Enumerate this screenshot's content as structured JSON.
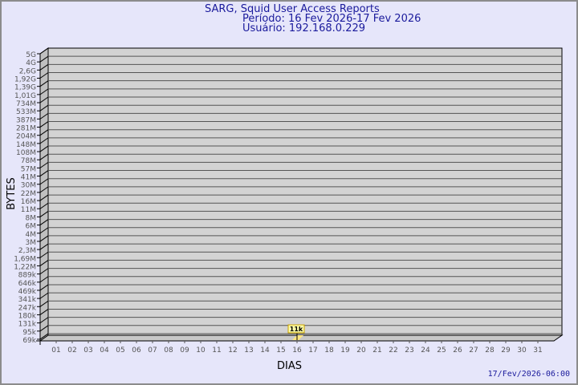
{
  "chart_data": {
    "type": "bar",
    "title": "SARG, Squid User Access Reports",
    "subtitle_period": "Período: 16 Fev 2026-17 Fev 2026",
    "subtitle_user": "Usuário: 192.168.0.229",
    "xlabel": "DIAS",
    "ylabel": "BYTES",
    "scale": "log",
    "grid": true,
    "categories": [
      "01",
      "02",
      "03",
      "04",
      "05",
      "06",
      "07",
      "08",
      "09",
      "10",
      "11",
      "12",
      "13",
      "14",
      "15",
      "16",
      "17",
      "18",
      "19",
      "20",
      "21",
      "22",
      "23",
      "24",
      "25",
      "26",
      "27",
      "28",
      "29",
      "30",
      "31"
    ],
    "y_ticks": [
      "5G",
      "4G",
      "2,6G",
      "1,92G",
      "1,39G",
      "1,01G",
      "734M",
      "533M",
      "387M",
      "281M",
      "204M",
      "148M",
      "108M",
      "78M",
      "57M",
      "41M",
      "30M",
      "22M",
      "16M",
      "11M",
      "8M",
      "6M",
      "4M",
      "3M",
      "2,3M",
      "1,69M",
      "1,22M",
      "889k",
      "646k",
      "469k",
      "341k",
      "247k",
      "180k",
      "131k",
      "95k",
      "69k"
    ],
    "points": [
      {
        "x": "16",
        "label": "11k"
      }
    ],
    "colors": {
      "background": "#e6e6fa",
      "wall": "#d3d3d3",
      "bar": "#ffe680",
      "text": "#1a1a9c"
    }
  },
  "timestamp": "17/Fev/2026-06:00"
}
